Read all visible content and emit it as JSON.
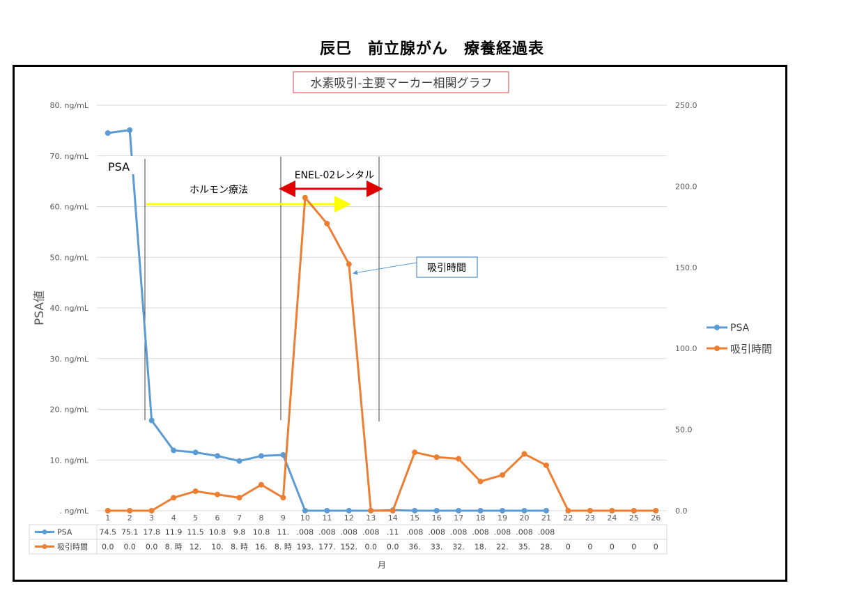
{
  "page_title": "辰巳　前立腺がん　療養経過表",
  "chart_data": {
    "type": "line",
    "title": "水素吸引-主要マーカー相関グラフ",
    "xlabel": "月",
    "ylabel": "PSA値",
    "categories": [
      "1",
      "2",
      "3",
      "4",
      "5",
      "6",
      "7",
      "8",
      "9",
      "10",
      "11",
      "12",
      "13",
      "14",
      "15",
      "16",
      "17",
      "18",
      "19",
      "20",
      "21",
      "22",
      "23",
      "24",
      "25",
      "26"
    ],
    "ylim": [
      0,
      80
    ],
    "y2lim": [
      0,
      250
    ],
    "y_ticks": [
      ". ng/mL",
      "10. ng/mL",
      "20. ng/mL",
      "30. ng/mL",
      "40. ng/mL",
      "50. ng/mL",
      "60. ng/mL",
      "70. ng/mL",
      "80. ng/mL"
    ],
    "y2_ticks": [
      "0.0",
      "50.0",
      "100.0",
      "150.0",
      "200.0",
      "250.0"
    ],
    "grid": true,
    "legend_position": "right",
    "series": [
      {
        "name": "PSA",
        "axis": "left",
        "color": "#5b9bd5",
        "values": [
          74.5,
          75.1,
          17.8,
          11.9,
          11.5,
          10.8,
          9.8,
          10.8,
          11.0,
          0.008,
          0.008,
          0.008,
          0.008,
          0.11,
          0.008,
          0.008,
          0.008,
          0.008,
          0.008,
          0.008,
          0.008,
          null,
          null,
          null,
          null,
          null
        ],
        "table_labels": [
          "74.5",
          "75.1",
          "17.8",
          "11.9",
          "11.5",
          "10.8",
          "9.8",
          "10.8",
          "11.",
          ".008",
          ".008",
          ".008",
          ".008",
          ".11",
          ".008",
          ".008",
          ".008",
          ".008",
          ".008",
          ".008",
          ".008",
          "",
          "",
          "",
          "",
          ""
        ]
      },
      {
        "name": "吸引時間",
        "axis": "right",
        "color": "#ed7d31",
        "values": [
          0,
          0,
          0,
          8,
          12,
          10,
          8,
          16,
          8,
          193,
          177,
          152,
          0,
          0,
          36,
          33,
          32,
          18,
          22,
          35,
          28,
          0,
          0,
          0,
          0,
          0
        ],
        "table_labels": [
          "0.0",
          "0.0",
          "0.0",
          "8. 時",
          "12.",
          "10.",
          "8. 時",
          "16.",
          "8. 時",
          "193.",
          "177.",
          "152.",
          "0.0",
          "0.0",
          "36.",
          "33.",
          "32.",
          "18.",
          "22.",
          "35.",
          "28.",
          "0",
          "0",
          "0",
          "0",
          "0"
        ]
      }
    ],
    "annotations": {
      "psa_label": "PSA",
      "hormone": "ホルモン療法",
      "enel": "ENEL-02レンタル",
      "callout": "吸引時間"
    }
  }
}
